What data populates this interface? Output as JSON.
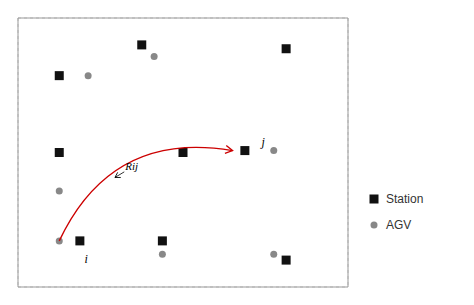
{
  "chart_data": {
    "type": "scatter",
    "series": [
      {
        "name": "Station",
        "color": "#111111",
        "marker": "square",
        "x": [
          3,
          6.5,
          1,
          5.5,
          1,
          4,
          1.5,
          3.5,
          6.5
        ],
        "values": [
          6.3,
          6.2,
          5.5,
          3.55,
          3.5,
          3.5,
          1.2,
          1.2,
          0.7
        ]
      },
      {
        "name": "AGV",
        "color": "#888888",
        "marker": "circle",
        "x": [
          1.7,
          3.3,
          1,
          6.2,
          1.0,
          3.5,
          6.2
        ],
        "values": [
          5.5,
          6.0,
          2.5,
          3.55,
          1.2,
          0.85,
          0.85
        ]
      }
    ],
    "xlim": [
      0,
      8
    ],
    "ylim": [
      0,
      7
    ],
    "xticks": [
      0,
      1,
      2,
      3,
      4,
      5,
      6,
      7,
      8
    ],
    "yticks": [
      0,
      1,
      2,
      3,
      4,
      5,
      6,
      7
    ],
    "grid": true,
    "tick_labels": false,
    "legend": "right",
    "arrow": {
      "from": [
        1.0,
        1.2
      ],
      "to": [
        5.2,
        3.55
      ],
      "color": "#cc0000"
    },
    "annotations": [
      {
        "text": "i",
        "x": 1.65,
        "y": 0.85
      },
      {
        "text": "j",
        "x": 5.9,
        "y": 3.75
      },
      {
        "text": "Rij",
        "x": 2.6,
        "y": 3.1,
        "arrow_x": 2.35,
        "arrow_y": 2.85
      }
    ]
  }
}
